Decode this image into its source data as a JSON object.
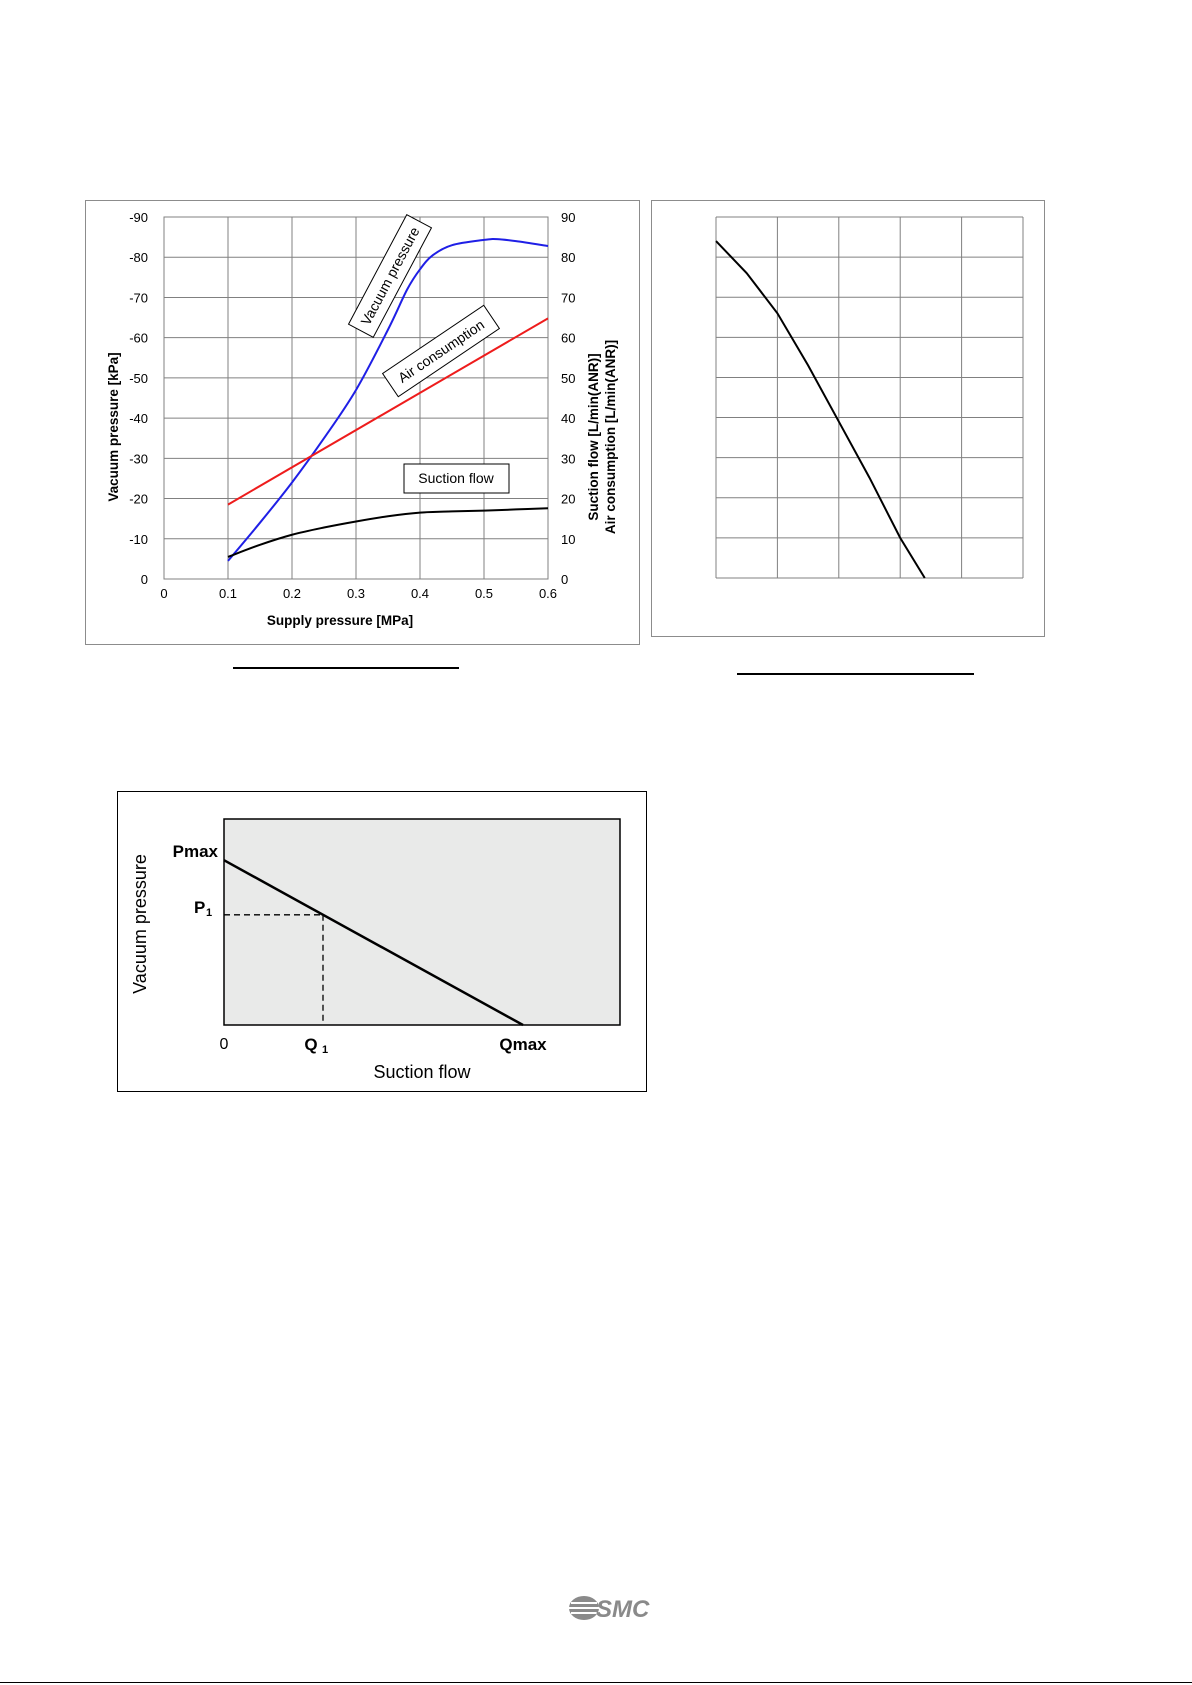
{
  "chart_data": [
    {
      "type": "line",
      "title": "",
      "xlabel": "Supply pressure [MPa]",
      "ylabel": "Vacuum pressure [kPa]",
      "y2label_line1": "Suction flow  [L/min(ANR)]",
      "y2label_line2": "Air consumption [L/min(ANR)]",
      "xlim": [
        0,
        0.6
      ],
      "ylim": [
        0,
        -90
      ],
      "y2lim": [
        0,
        90
      ],
      "xticks": [
        "0",
        "0.1",
        "0.2",
        "0.3",
        "0.4",
        "0.5",
        "0.6"
      ],
      "yticks": [
        "0",
        "-10",
        "-20",
        "-30",
        "-40",
        "-50",
        "-60",
        "-70",
        "-80",
        "-90"
      ],
      "y2ticks": [
        "0",
        "10",
        "20",
        "30",
        "40",
        "50",
        "60",
        "70",
        "80",
        "90"
      ],
      "grid": true,
      "series": [
        {
          "name": "Vacuum pressure",
          "color": "#1f1fe6",
          "axis": "left",
          "x": [
            0.1,
            0.15,
            0.2,
            0.25,
            0.3,
            0.35,
            0.38,
            0.4,
            0.42,
            0.45,
            0.5,
            0.52,
            0.55,
            0.6
          ],
          "y": [
            -4.5,
            -14,
            -24,
            -35,
            -47,
            -62,
            -72,
            -77,
            -80.5,
            -83,
            -84.3,
            -84.5,
            -84,
            -82.8
          ]
        },
        {
          "name": "Air consumption",
          "color": "#ee1c1c",
          "axis": "right",
          "x": [
            0.1,
            0.6
          ],
          "y": [
            18.5,
            64.8
          ]
        },
        {
          "name": "Suction flow",
          "color": "#000000",
          "axis": "right",
          "x": [
            0.1,
            0.15,
            0.2,
            0.25,
            0.3,
            0.35,
            0.4,
            0.45,
            0.5,
            0.55,
            0.6
          ],
          "y": [
            5.5,
            8.5,
            11,
            12.8,
            14.3,
            15.6,
            16.5,
            16.8,
            17,
            17.3,
            17.6
          ]
        }
      ],
      "annotations": [
        "Vacuum pressure",
        "Air consumption",
        "Suction flow"
      ]
    },
    {
      "type": "line",
      "title": "",
      "xlabel": "",
      "ylabel": "",
      "grid": true,
      "xlim": [
        0,
        5
      ],
      "ylim": [
        0,
        9
      ],
      "series": [
        {
          "color": "#000000",
          "x": [
            0,
            0.5,
            1,
            1.5,
            2,
            2.5,
            3,
            3.4
          ],
          "y": [
            8.4,
            7.6,
            6.6,
            5.3,
            3.9,
            2.5,
            1.0,
            0
          ]
        }
      ]
    },
    {
      "type": "line",
      "title": "",
      "xlabel": "Suction flow",
      "ylabel": "Vacuum pressure",
      "background": "#e9eae9",
      "xlim": [
        0,
        1
      ],
      "ylim": [
        0,
        1
      ],
      "xticks": [
        "0",
        "Q1",
        "Qmax"
      ],
      "yticks": [
        "Pmax",
        "P1"
      ],
      "series": [
        {
          "color": "#000000",
          "x": [
            0,
            0.755
          ],
          "y": [
            0.8,
            0
          ]
        }
      ],
      "reference_point": {
        "x_label": "Q1",
        "y_label": "P1",
        "x": 0.25,
        "y": 0.535
      }
    }
  ],
  "footer": {
    "logo_text": "SMC"
  }
}
